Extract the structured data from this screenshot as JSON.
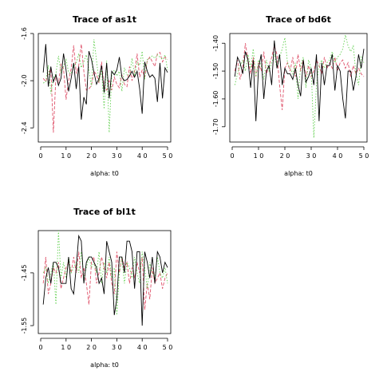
{
  "colors": {
    "chain1": "#000000",
    "chain2": "#DF536B",
    "chain3": "#61D04F"
  },
  "chart_data": [
    {
      "type": "line",
      "title": "Trace of as1t",
      "xlabel": "alpha: t0",
      "ylabel": "",
      "xlim": [
        0,
        50
      ],
      "ylim": [
        -2.52,
        -1.6
      ],
      "xticks": [
        0,
        10,
        20,
        30,
        40,
        50
      ],
      "xtick_labels": [
        "0",
        "1 0",
        "2 0",
        "3 0",
        "4 0",
        "5 0"
      ],
      "yticks": [
        -2.4,
        -2.0,
        -1.6
      ],
      "ytick_labels": [
        "-2.4",
        "-2.0",
        "-1.6"
      ],
      "x_start": 1,
      "series": [
        {
          "style": "solid",
          "values": [
            -1.93,
            -1.69,
            -2.05,
            -1.88,
            -2.01,
            -1.95,
            -2.04,
            -1.98,
            -1.77,
            -1.91,
            -2.09,
            -1.98,
            -1.85,
            -2.07,
            -1.88,
            -2.33,
            -2.14,
            -2.2,
            -1.75,
            -1.82,
            -1.93,
            -2.03,
            -1.98,
            -1.87,
            -2.1,
            -1.85,
            -2.15,
            -1.92,
            -1.95,
            -1.91,
            -1.8,
            -1.97,
            -2.0,
            -1.99,
            -1.96,
            -1.92,
            -1.97,
            -1.92,
            -2.07,
            -2.28,
            -1.84,
            -1.92,
            -1.97,
            -1.95,
            -1.98,
            -2.18,
            -1.85,
            -2.15,
            -1.89,
            -1.93
          ]
        },
        {
          "style": "dashed",
          "values": [
            -1.98,
            -2.01,
            -1.94,
            -1.9,
            -2.44,
            -1.96,
            -2.02,
            -1.86,
            -1.9,
            -2.16,
            -2.0,
            -1.9,
            -1.7,
            -1.94,
            -1.87,
            -1.69,
            -1.92,
            -2.08,
            -2.07,
            -2.04,
            -1.92,
            -1.95,
            -2.02,
            -1.84,
            -2.06,
            -2.08,
            -2.0,
            -2.08,
            -1.97,
            -2.03,
            -2.06,
            -1.95,
            -2.03,
            -2.05,
            -1.88,
            -2.0,
            -1.92,
            -1.77,
            -1.97,
            -1.91,
            -1.97,
            -1.83,
            -1.8,
            -1.84,
            -1.88,
            -1.77,
            -1.76,
            -1.84,
            -1.8,
            -1.82
          ]
        },
        {
          "style": "dotted",
          "values": [
            -2.02,
            -2.01,
            -1.87,
            -2.11,
            -1.98,
            -1.94,
            -1.79,
            -1.93,
            -1.88,
            -1.82,
            -1.93,
            -1.94,
            -1.88,
            -1.85,
            -1.77,
            -1.89,
            -1.84,
            -1.78,
            -1.91,
            -2.05,
            -1.65,
            -1.83,
            -2.01,
            -1.91,
            -2.24,
            -1.83,
            -2.44,
            -1.95,
            -1.91,
            -1.96,
            -1.92,
            -2.09,
            -1.89,
            -1.95,
            -1.96,
            -1.81,
            -1.96,
            -1.84,
            -1.87,
            -1.75,
            -1.99,
            -1.82,
            -1.81,
            -1.79,
            -1.81,
            -1.78,
            -1.8,
            -1.82,
            -1.78,
            -1.91
          ]
        }
      ]
    },
    {
      "type": "line",
      "title": "Trace of bd6t",
      "xlabel": "alpha: t0",
      "ylabel": "",
      "xlim": [
        0,
        50
      ],
      "ylim": [
        -1.755,
        -1.365
      ],
      "xticks": [
        0,
        10,
        20,
        30,
        40,
        50
      ],
      "xtick_labels": [
        "0",
        "1 0",
        "2 0",
        "3 0",
        "4 0",
        "5 0"
      ],
      "yticks": [
        -1.7,
        -1.6,
        -1.5,
        -1.4
      ],
      "ytick_labels": [
        "-1.70",
        "-1.60",
        "-1.50",
        "-1.40"
      ],
      "x_start": 1,
      "series": [
        {
          "style": "solid",
          "values": [
            -1.52,
            -1.45,
            -1.47,
            -1.51,
            -1.43,
            -1.46,
            -1.56,
            -1.46,
            -1.68,
            -1.49,
            -1.44,
            -1.6,
            -1.5,
            -1.48,
            -1.55,
            -1.39,
            -1.49,
            -1.44,
            -1.55,
            -1.49,
            -1.51,
            -1.51,
            -1.53,
            -1.49,
            -1.55,
            -1.59,
            -1.46,
            -1.54,
            -1.52,
            -1.49,
            -1.55,
            -1.44,
            -1.68,
            -1.47,
            -1.55,
            -1.48,
            -1.48,
            -1.44,
            -1.57,
            -1.48,
            -1.5,
            -1.6,
            -1.67,
            -1.5,
            -1.5,
            -1.57,
            -1.52,
            -1.44,
            -1.49,
            -1.42
          ]
        },
        {
          "style": "dashed",
          "values": [
            -1.5,
            -1.46,
            -1.53,
            -1.49,
            -1.4,
            -1.46,
            -1.51,
            -1.45,
            -1.52,
            -1.47,
            -1.5,
            -1.43,
            -1.51,
            -1.48,
            -1.45,
            -1.41,
            -1.44,
            -1.55,
            -1.64,
            -1.49,
            -1.47,
            -1.5,
            -1.45,
            -1.52,
            -1.44,
            -1.5,
            -1.46,
            -1.52,
            -1.48,
            -1.52,
            -1.5,
            -1.46,
            -1.48,
            -1.51,
            -1.45,
            -1.49,
            -1.47,
            -1.49,
            -1.45,
            -1.5,
            -1.47,
            -1.46,
            -1.49,
            -1.47,
            -1.52,
            -1.48,
            -1.51,
            -1.49,
            -1.51,
            -1.52
          ]
        },
        {
          "style": "dotted",
          "values": [
            -1.55,
            -1.51,
            -1.48,
            -1.46,
            -1.5,
            -1.44,
            -1.49,
            -1.42,
            -1.52,
            -1.46,
            -1.48,
            -1.53,
            -1.46,
            -1.5,
            -1.47,
            -1.44,
            -1.49,
            -1.45,
            -1.42,
            -1.38,
            -1.47,
            -1.49,
            -1.51,
            -1.47,
            -1.6,
            -1.48,
            -1.45,
            -1.56,
            -1.46,
            -1.49,
            -1.74,
            -1.55,
            -1.48,
            -1.46,
            -1.49,
            -1.47,
            -1.46,
            -1.43,
            -1.47,
            -1.45,
            -1.44,
            -1.42,
            -1.37,
            -1.41,
            -1.43,
            -1.41,
            -1.51,
            -1.55,
            -1.45,
            -1.47
          ]
        }
      ]
    },
    {
      "type": "line",
      "title": "Trace of bl1t",
      "xlabel": "alpha: t0",
      "ylabel": "",
      "xlim": [
        0,
        50
      ],
      "ylim": [
        -1.565,
        -1.37
      ],
      "xticks": [
        0,
        10,
        20,
        30,
        40,
        50
      ],
      "xtick_labels": [
        "0",
        "1 0",
        "2 0",
        "3 0",
        "4 0",
        "5 0"
      ],
      "yticks": [
        -1.55,
        -1.45
      ],
      "ytick_labels": [
        "-1.55",
        "-1.45"
      ],
      "x_start": 1,
      "series": [
        {
          "style": "solid",
          "values": [
            -1.51,
            -1.46,
            -1.44,
            -1.47,
            -1.43,
            -1.43,
            -1.44,
            -1.47,
            -1.47,
            -1.47,
            -1.42,
            -1.48,
            -1.49,
            -1.44,
            -1.38,
            -1.39,
            -1.47,
            -1.43,
            -1.42,
            -1.42,
            -1.43,
            -1.44,
            -1.47,
            -1.46,
            -1.49,
            -1.39,
            -1.41,
            -1.43,
            -1.53,
            -1.5,
            -1.42,
            -1.42,
            -1.45,
            -1.39,
            -1.39,
            -1.41,
            -1.48,
            -1.41,
            -1.41,
            -1.55,
            -1.41,
            -1.43,
            -1.46,
            -1.42,
            -1.47,
            -1.41,
            -1.42,
            -1.45,
            -1.43,
            -1.44
          ]
        },
        {
          "style": "dashed",
          "values": [
            -1.47,
            -1.42,
            -1.49,
            -1.47,
            -1.44,
            -1.45,
            -1.43,
            -1.48,
            -1.46,
            -1.44,
            -1.43,
            -1.45,
            -1.42,
            -1.45,
            -1.41,
            -1.46,
            -1.44,
            -1.47,
            -1.51,
            -1.43,
            -1.42,
            -1.47,
            -1.45,
            -1.42,
            -1.44,
            -1.46,
            -1.43,
            -1.47,
            -1.49,
            -1.41,
            -1.45,
            -1.42,
            -1.44,
            -1.43,
            -1.47,
            -1.44,
            -1.46,
            -1.43,
            -1.45,
            -1.42,
            -1.52,
            -1.47,
            -1.5,
            -1.44,
            -1.47,
            -1.46,
            -1.45,
            -1.48,
            -1.46,
            -1.45
          ]
        },
        {
          "style": "dotted",
          "values": [
            -1.45,
            -1.44,
            -1.47,
            -1.45,
            -1.43,
            -1.51,
            -1.37,
            -1.46,
            -1.43,
            -1.46,
            -1.42,
            -1.45,
            -1.44,
            -1.43,
            -1.45,
            -1.41,
            -1.46,
            -1.44,
            -1.42,
            -1.44,
            -1.43,
            -1.45,
            -1.41,
            -1.47,
            -1.43,
            -1.45,
            -1.42,
            -1.46,
            -1.44,
            -1.53,
            -1.45,
            -1.42,
            -1.47,
            -1.43,
            -1.44,
            -1.46,
            -1.42,
            -1.45,
            -1.47,
            -1.41,
            -1.44,
            -1.48,
            -1.43,
            -1.45,
            -1.46,
            -1.42,
            -1.45,
            -1.46,
            -1.44,
            -1.47
          ]
        }
      ]
    }
  ]
}
